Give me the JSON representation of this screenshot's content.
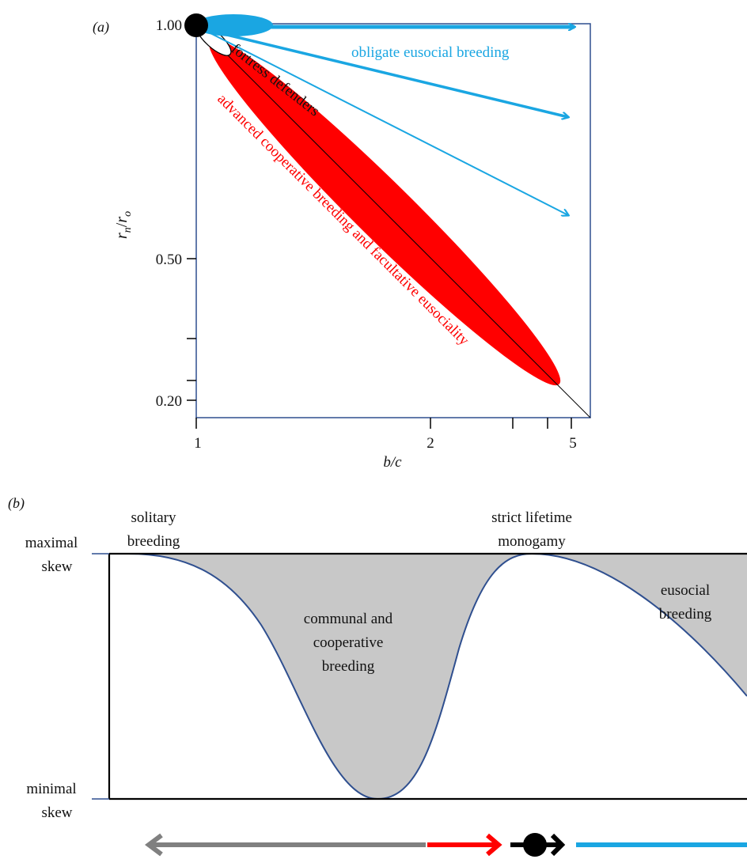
{
  "panel_a": {
    "panel_label": "(a)",
    "y_axis": {
      "label_main": "r",
      "label_sub1": "n",
      "label_slash": "/",
      "label_main2": "r",
      "label_sub2": "o",
      "ticks": [
        "1.00",
        "0.50",
        "0.20"
      ]
    },
    "x_axis": {
      "label": "b/c",
      "ticks": [
        "1",
        "2",
        "5"
      ]
    },
    "labels": {
      "obligate": "obligate eusocial breeding",
      "fortress": "fortress defenders",
      "advanced": "advanced cooperative breeding and facultative eusociality"
    },
    "colors": {
      "blue": "#1aa6e2",
      "red": "#ff0000",
      "black": "#000000",
      "frame": "#2f4f8f"
    }
  },
  "panel_b": {
    "panel_label": "(b)",
    "y_labels": {
      "max_line1": "maximal",
      "max_line2": "skew",
      "min_line1": "minimal",
      "min_line2": "skew"
    },
    "labels": {
      "solitary_1": "solitary",
      "solitary_2": "breeding",
      "monogamy_1": "strict lifetime",
      "monogamy_2": "monogamy",
      "communal_1": "communal and",
      "communal_2": "cooperative",
      "communal_3": "breeding",
      "eusocial_1": "eusocial",
      "eusocial_2": "breeding"
    },
    "colors": {
      "fill": "#c8c8c8",
      "curve": "#2f4f8f",
      "gray_arrow": "#808080",
      "red_arrow": "#ff0000",
      "blue_arrow": "#1aa6e2",
      "black": "#000000"
    }
  }
}
